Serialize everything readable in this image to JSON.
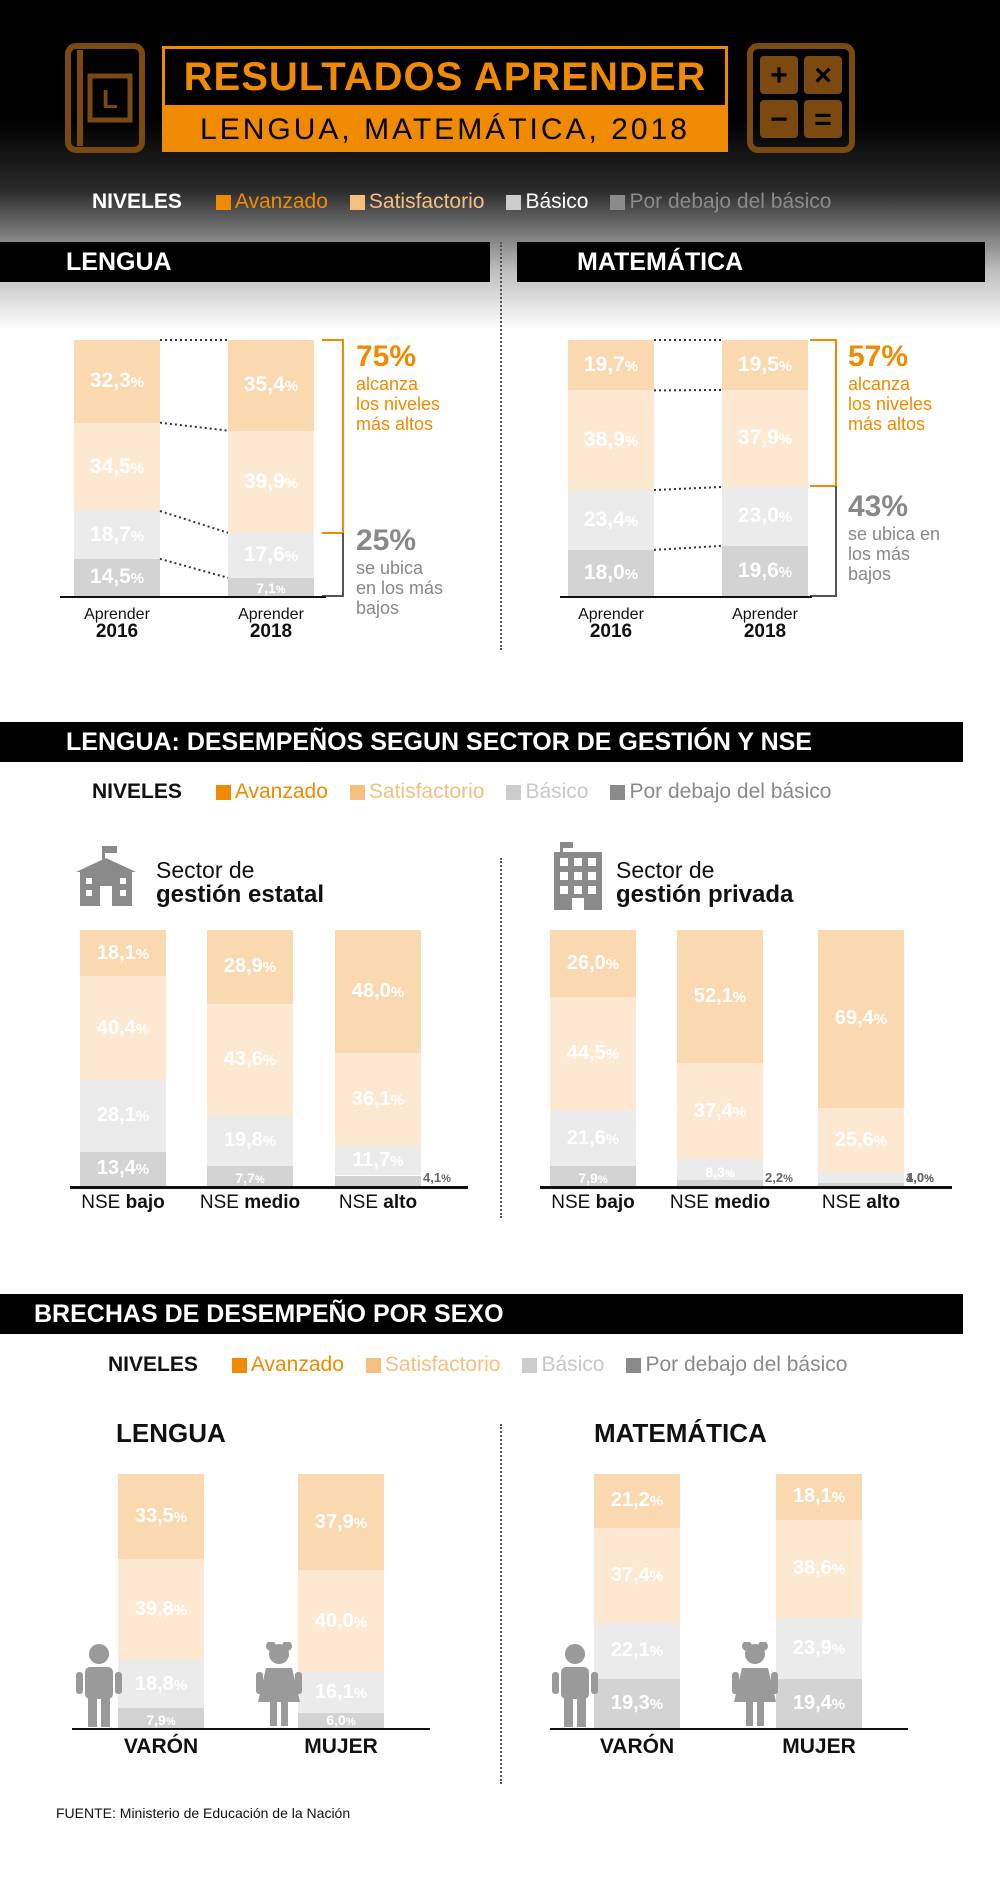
{
  "header": {
    "title": "RESULTADOS APRENDER",
    "subtitle": "LENGUA, MATEMÁTICA, 2018",
    "book_letter": "L",
    "calc_symbols": [
      "+",
      "×",
      "−",
      "="
    ]
  },
  "legend": {
    "label": "NIVELES",
    "items": [
      {
        "label": "Avanzado",
        "color": "#f08a00"
      },
      {
        "label": "Satisfactorio",
        "color": "#f5c07f"
      },
      {
        "label": "Básico",
        "color": "#cccccc"
      },
      {
        "label": "Por debajo del básico",
        "color": "#8a8a8a"
      }
    ]
  },
  "colors": {
    "avanzado": "#fad9b0",
    "satisfactorio": "#fde9d2",
    "basico": "#ebebeb",
    "debajo": "#d3d3d3",
    "accent": "#f08a00",
    "gray_text": "#888888"
  },
  "section1": {
    "lengua_title": "LENGUA",
    "mate_title": "MATEMÁTICA",
    "lengua_high": {
      "pct": "75%",
      "text": [
        "alcanza",
        "los niveles",
        "más altos"
      ]
    },
    "lengua_low": {
      "pct": "25%",
      "text": [
        "se ubica",
        "en los más",
        "bajos"
      ]
    },
    "mate_high": {
      "pct": "57%",
      "text": [
        "alcanza",
        "los niveles",
        "más altos"
      ]
    },
    "mate_low": {
      "pct": "43%",
      "text": [
        "se ubica en",
        "los más",
        "bajos"
      ]
    }
  },
  "section2": {
    "title": "LENGUA: DESEMPEÑOS SEGUN SECTOR DE GESTIÓN Y NSE",
    "estatal": {
      "line1": "Sector de",
      "line2": "gestión estatal"
    },
    "privada": {
      "line1": "Sector de",
      "line2": "gestión privada"
    },
    "nse_prefix": "NSE",
    "nse_levels": [
      "bajo",
      "medio",
      "alto"
    ]
  },
  "section3": {
    "title": "BRECHAS DE DESEMPEÑO POR SEXO",
    "lengua": "LENGUA",
    "mate": "MATEMÁTICA",
    "male": "VARÓN",
    "female": "MUJER"
  },
  "source": "FUENTE: Ministerio de Educación de la Nación",
  "chart_data": [
    {
      "type": "bar",
      "stacked": true,
      "title": "LENGUA",
      "categories": [
        "Aprender 2016",
        "Aprender 2018"
      ],
      "series": [
        {
          "name": "Por debajo del básico",
          "values": [
            14.5,
            7.1
          ]
        },
        {
          "name": "Básico",
          "values": [
            18.7,
            17.6
          ]
        },
        {
          "name": "Satisfactorio",
          "values": [
            34.5,
            39.9
          ]
        },
        {
          "name": "Avanzado",
          "values": [
            32.3,
            35.4
          ]
        }
      ]
    },
    {
      "type": "bar",
      "stacked": true,
      "title": "MATEMÁTICA",
      "categories": [
        "Aprender 2016",
        "Aprender 2018"
      ],
      "series": [
        {
          "name": "Por debajo del básico",
          "values": [
            18.0,
            19.6
          ]
        },
        {
          "name": "Básico",
          "values": [
            23.4,
            23.0
          ]
        },
        {
          "name": "Satisfactorio",
          "values": [
            38.9,
            37.9
          ]
        },
        {
          "name": "Avanzado",
          "values": [
            19.7,
            19.5
          ]
        }
      ]
    },
    {
      "type": "bar",
      "stacked": true,
      "title": "Sector de gestión estatal",
      "categories": [
        "NSE bajo",
        "NSE medio",
        "NSE alto"
      ],
      "series": [
        {
          "name": "Por debajo del básico",
          "values": [
            13.4,
            7.7,
            4.1
          ]
        },
        {
          "name": "Básico",
          "values": [
            28.1,
            19.8,
            11.7
          ]
        },
        {
          "name": "Satisfactorio",
          "values": [
            40.4,
            43.6,
            36.1
          ]
        },
        {
          "name": "Avanzado",
          "values": [
            18.1,
            28.9,
            48.0
          ]
        }
      ]
    },
    {
      "type": "bar",
      "stacked": true,
      "title": "Sector de gestión privada",
      "categories": [
        "NSE bajo",
        "NSE medio",
        "NSE alto"
      ],
      "series": [
        {
          "name": "Por debajo del básico",
          "values": [
            7.9,
            2.2,
            1.0
          ]
        },
        {
          "name": "Básico",
          "values": [
            21.6,
            8.3,
            4.0
          ]
        },
        {
          "name": "Satisfactorio",
          "values": [
            44.5,
            37.4,
            25.6
          ]
        },
        {
          "name": "Avanzado",
          "values": [
            26.0,
            52.1,
            69.4
          ]
        }
      ]
    },
    {
      "type": "bar",
      "stacked": true,
      "title": "LENGUA",
      "categories": [
        "VARÓN",
        "MUJER"
      ],
      "series": [
        {
          "name": "Por debajo del básico",
          "values": [
            7.9,
            6.0
          ]
        },
        {
          "name": "Básico",
          "values": [
            18.8,
            16.1
          ]
        },
        {
          "name": "Satisfactorio",
          "values": [
            39.8,
            40.0
          ]
        },
        {
          "name": "Avanzado",
          "values": [
            33.5,
            37.9
          ]
        }
      ]
    },
    {
      "type": "bar",
      "stacked": true,
      "title": "MATEMÁTICA",
      "categories": [
        "VARÓN",
        "MUJER"
      ],
      "series": [
        {
          "name": "Por debajo del básico",
          "values": [
            19.3,
            19.4
          ]
        },
        {
          "name": "Básico",
          "values": [
            22.1,
            23.9
          ]
        },
        {
          "name": "Satisfactorio",
          "values": [
            37.4,
            38.6
          ]
        },
        {
          "name": "Avanzado",
          "values": [
            21.2,
            18.1
          ]
        }
      ]
    }
  ]
}
